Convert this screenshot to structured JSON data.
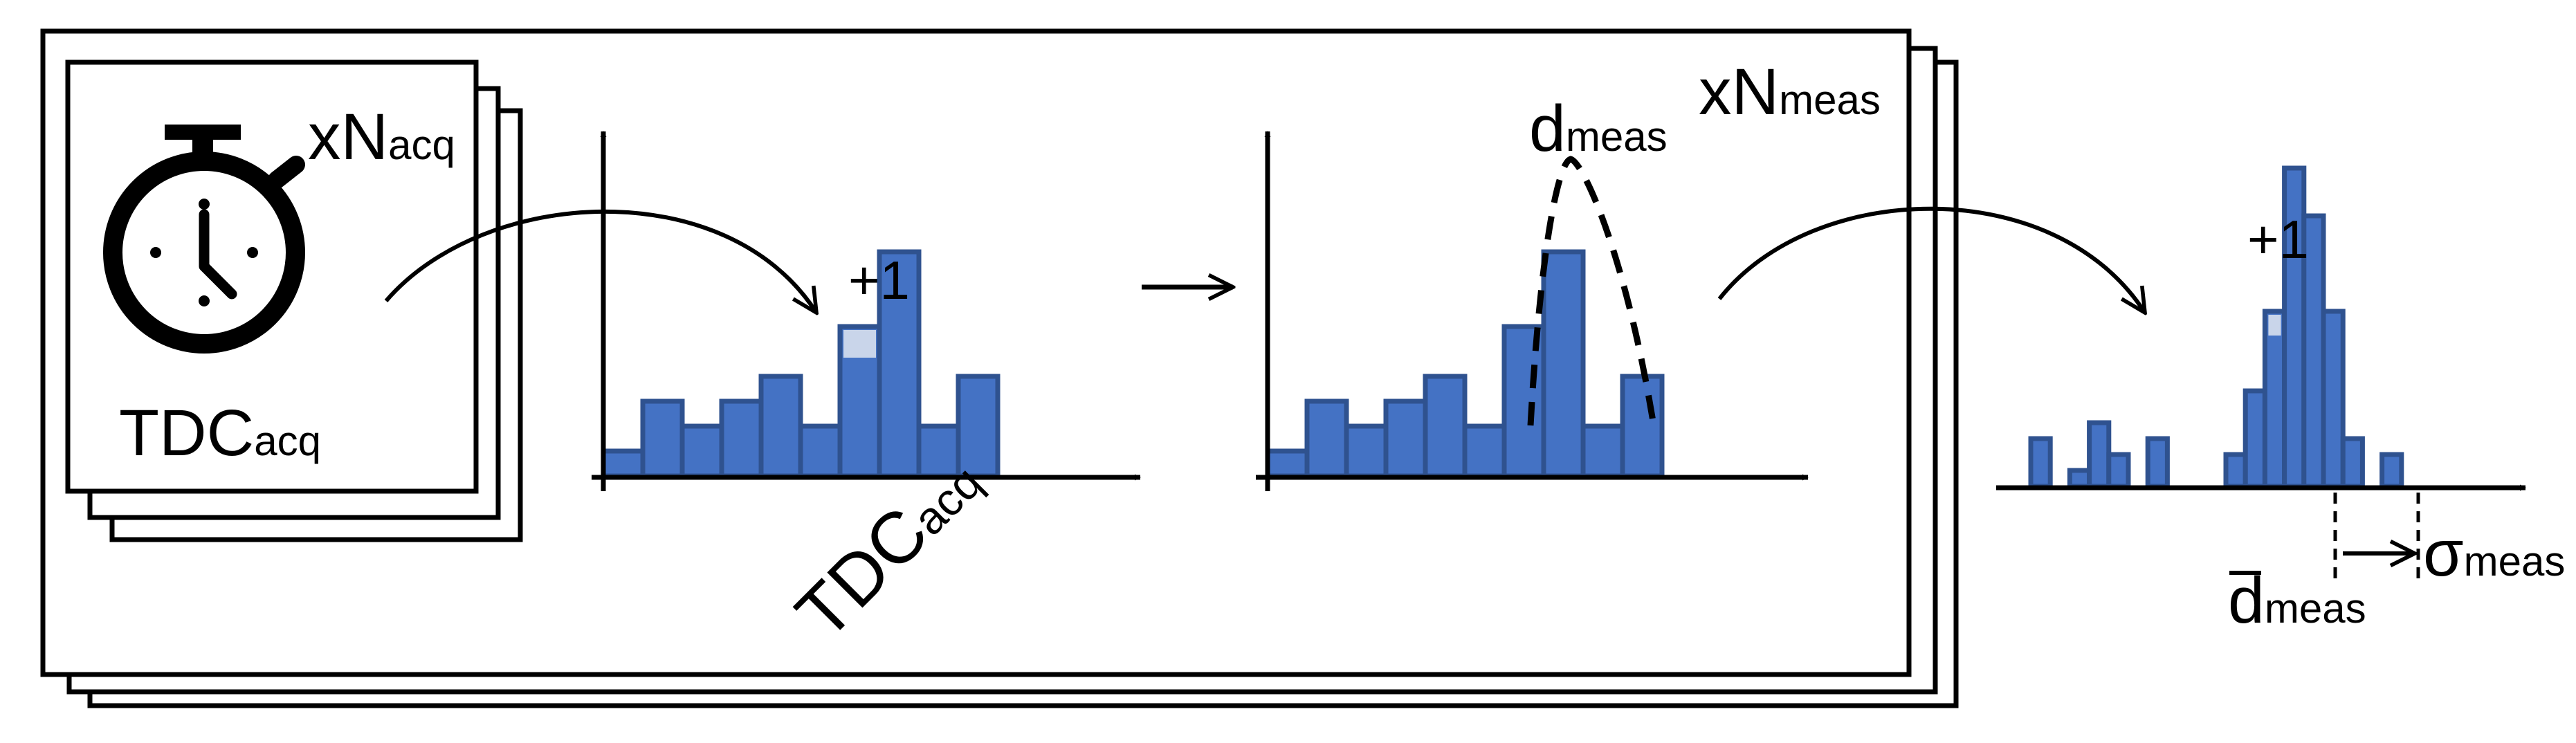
{
  "colors": {
    "bar_fill": "#4472c4",
    "bar_stroke": "#2f528f",
    "highlight_fill": "#c9d5ea",
    "ink": "#000000"
  },
  "icons": {
    "timer": "stopwatch-icon"
  },
  "labels": {
    "acq_repeat": {
      "prefix": "xN",
      "sub": "acq"
    },
    "tdc_acq": {
      "main": "TDC",
      "sub": "acq"
    },
    "hist_axis": {
      "main": "TDC",
      "sub": "acq"
    },
    "plus_one_a": "+1",
    "meas_repeat": {
      "prefix": "xN",
      "sub": "meas"
    },
    "peak": {
      "main": "d",
      "sub": "meas"
    },
    "plus_one_b": "+1",
    "mean": {
      "main": "d",
      "sub": "meas"
    },
    "sigma": {
      "main": "σ",
      "sub": "meas"
    }
  },
  "chart_data": [
    {
      "type": "bar",
      "values": [
        1,
        3,
        2,
        3,
        4,
        2,
        6,
        9,
        2,
        4
      ],
      "highlight": {
        "bin": 6,
        "label": "+1"
      }
    },
    {
      "type": "bar",
      "values": [
        1,
        3,
        2,
        3,
        4,
        2,
        6,
        9,
        2,
        4
      ],
      "overlay": "dashed peak fit",
      "peak_label": "d_meas"
    },
    {
      "type": "bar",
      "values": [
        3,
        0,
        1,
        4,
        2,
        0,
        3,
        0,
        0,
        0,
        2,
        6,
        11,
        20,
        17,
        11,
        3,
        0,
        2
      ],
      "highlight": {
        "bin": 12,
        "label": "+1"
      },
      "markers": [
        "mean d_meas",
        "sigma_meas"
      ]
    }
  ]
}
